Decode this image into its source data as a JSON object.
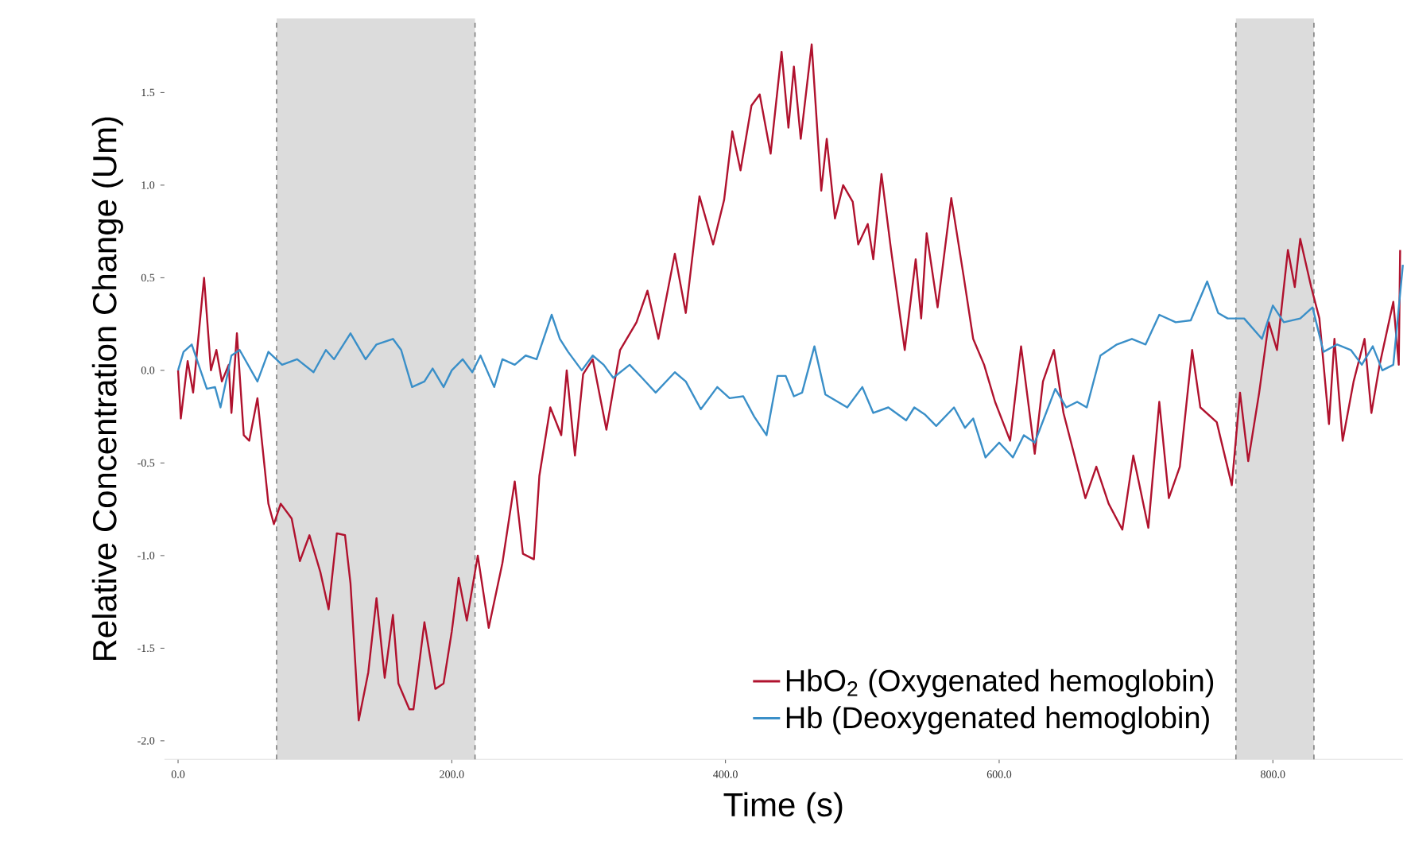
{
  "chart_data": {
    "type": "line",
    "xlabel": "Time (s)",
    "ylabel": "Relative Concentration Change (Um)",
    "xlim": [
      -10,
      895
    ],
    "ylim": [
      -2.1,
      1.9
    ],
    "xticks": [
      {
        "value": 0,
        "label": "0.0"
      },
      {
        "value": 200,
        "label": "200.0"
      },
      {
        "value": 400,
        "label": "400.0"
      },
      {
        "value": 600,
        "label": "600.0"
      },
      {
        "value": 800,
        "label": "800.0"
      }
    ],
    "yticks": [
      {
        "value": -2,
        "label": "-2.0"
      },
      -1.5,
      {
        "value": -1,
        "label": "-1.0"
      },
      -0.5,
      {
        "value": 0,
        "label": "0.0"
      },
      0.5,
      {
        "value": 1,
        "label": "1.0"
      },
      1.5
    ],
    "grid": false,
    "legend": "bottom right",
    "marker": "none",
    "line_style": "solid",
    "bands": [
      {
        "axis": "x",
        "from": 72,
        "to": 217,
        "color": "#dcdcdc"
      },
      {
        "axis": "x",
        "from": 773,
        "to": 830,
        "color": "#dcdcdc"
      }
    ],
    "series": [
      {
        "name": "HbO$_{2}$ (Oxygenated hemoglobin)",
        "color": "#b0122e",
        "x": [
          0,
          2,
          7,
          11,
          19,
          24,
          28,
          32,
          37,
          39,
          43,
          48,
          52,
          58,
          66,
          70,
          75,
          83,
          89,
          96,
          104,
          110,
          116,
          122,
          126,
          132,
          139,
          145,
          151,
          157,
          161,
          169,
          172,
          180,
          188,
          194,
          200,
          205,
          211,
          219,
          227,
          237,
          246,
          252,
          260,
          264,
          272,
          280,
          284,
          290,
          296,
          303,
          313,
          323,
          335,
          343,
          351,
          363,
          371,
          381,
          391,
          399,
          405,
          411,
          419,
          425,
          433,
          441,
          446,
          450,
          455,
          463,
          470,
          474,
          480,
          486,
          493,
          497,
          504,
          508,
          514,
          521,
          531,
          539,
          543,
          547,
          555,
          565,
          574,
          581,
          589,
          597,
          608,
          616,
          626,
          632,
          640,
          647,
          663,
          671,
          680,
          690,
          698,
          709,
          717,
          724,
          732,
          741,
          747,
          759,
          770,
          776,
          782,
          790,
          797,
          803,
          811,
          816,
          820,
          828,
          834,
          841,
          845,
          851,
          859,
          867,
          872,
          878,
          888,
          892,
          893
        ],
        "values": [
          0,
          -0.26,
          0.05,
          -0.12,
          0.5,
          0,
          0.11,
          -0.06,
          0.03,
          -0.23,
          0.2,
          -0.35,
          -0.38,
          -0.15,
          -0.72,
          -0.83,
          -0.72,
          -0.8,
          -1.03,
          -0.89,
          -1.09,
          -1.29,
          -0.88,
          -0.89,
          -1.15,
          -1.89,
          -1.63,
          -1.23,
          -1.66,
          -1.32,
          -1.69,
          -1.83,
          -1.83,
          -1.36,
          -1.72,
          -1.69,
          -1.41,
          -1.12,
          -1.35,
          -1.0,
          -1.39,
          -1.04,
          -0.6,
          -0.99,
          -1.02,
          -0.57,
          -0.2,
          -0.35,
          0,
          -0.46,
          -0.02,
          0.06,
          -0.32,
          0.11,
          0.26,
          0.43,
          0.17,
          0.63,
          0.31,
          0.94,
          0.68,
          0.92,
          1.29,
          1.08,
          1.43,
          1.49,
          1.17,
          1.72,
          1.31,
          1.64,
          1.25,
          1.76,
          0.97,
          1.25,
          0.82,
          1.0,
          0.91,
          0.68,
          0.79,
          0.6,
          1.06,
          0.65,
          0.11,
          0.6,
          0.28,
          0.74,
          0.34,
          0.93,
          0.51,
          0.17,
          0.03,
          -0.17,
          -0.38,
          0.13,
          -0.45,
          -0.06,
          0.11,
          -0.23,
          -0.69,
          -0.52,
          -0.72,
          -0.86,
          -0.46,
          -0.85,
          -0.17,
          -0.69,
          -0.52,
          0.11,
          -0.2,
          -0.28,
          -0.62,
          -0.12,
          -0.49,
          -0.12,
          0.26,
          0.11,
          0.65,
          0.45,
          0.71,
          0.45,
          0.28,
          -0.29,
          0.17,
          -0.38,
          -0.06,
          0.17,
          -0.23,
          0.03,
          0.37,
          0.03,
          0.65
        ]
      },
      {
        "name": "Hb (Deoxygenated hemoglobin)",
        "color": "#3a8fc8",
        "x": [
          0,
          4,
          10,
          21,
          27,
          31,
          39,
          45,
          58,
          66,
          76,
          87,
          99,
          108,
          114,
          126,
          137,
          145,
          157,
          163,
          171,
          180,
          186,
          194,
          200,
          208,
          215,
          221,
          231,
          237,
          246,
          254,
          262,
          273,
          279,
          285,
          295,
          303,
          311,
          318,
          330,
          339,
          349,
          363,
          371,
          382,
          394,
          403,
          413,
          421,
          430,
          438,
          444,
          450,
          456,
          465,
          473,
          489,
          500,
          508,
          519,
          532,
          538,
          546,
          554,
          567,
          575,
          581,
          590,
          600,
          610,
          618,
          626,
          641,
          649,
          657,
          664,
          674,
          686,
          697,
          707,
          717,
          729,
          740,
          752,
          760,
          767,
          779,
          792,
          800,
          808,
          820,
          829,
          837,
          847,
          857,
          865,
          873,
          880,
          888,
          895
        ],
        "values": [
          0,
          0.1,
          0.14,
          -0.1,
          -0.09,
          -0.2,
          0.08,
          0.11,
          -0.06,
          0.1,
          0.03,
          0.06,
          -0.01,
          0.11,
          0.06,
          0.2,
          0.06,
          0.14,
          0.17,
          0.11,
          -0.09,
          -0.06,
          0.01,
          -0.09,
          0,
          0.06,
          -0.01,
          0.08,
          -0.09,
          0.06,
          0.03,
          0.08,
          0.06,
          0.3,
          0.17,
          0.1,
          0,
          0.08,
          0.03,
          -0.04,
          0.03,
          -0.04,
          -0.12,
          -0.01,
          -0.06,
          -0.21,
          -0.09,
          -0.15,
          -0.14,
          -0.25,
          -0.35,
          -0.03,
          -0.03,
          -0.14,
          -0.12,
          0.13,
          -0.13,
          -0.2,
          -0.09,
          -0.23,
          -0.2,
          -0.27,
          -0.2,
          -0.24,
          -0.3,
          -0.2,
          -0.31,
          -0.26,
          -0.47,
          -0.39,
          -0.47,
          -0.35,
          -0.39,
          -0.1,
          -0.2,
          -0.17,
          -0.2,
          0.08,
          0.14,
          0.17,
          0.14,
          0.3,
          0.26,
          0.27,
          0.48,
          0.31,
          0.28,
          0.28,
          0.17,
          0.35,
          0.26,
          0.28,
          0.34,
          0.1,
          0.14,
          0.11,
          0.03,
          0.13,
          0,
          0.03,
          0.57
        ]
      }
    ]
  }
}
